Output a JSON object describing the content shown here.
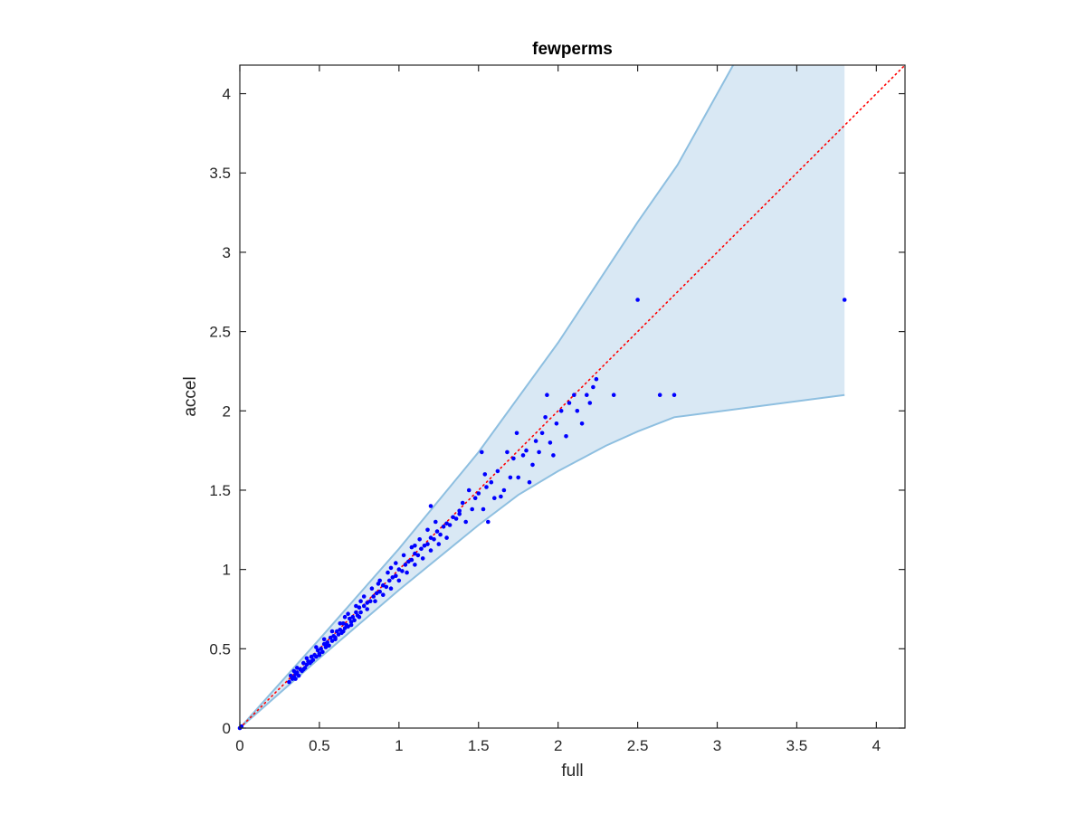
{
  "chart_data": {
    "type": "scatter",
    "title": "fewperms",
    "xlabel": "full",
    "ylabel": "accel",
    "xlim": [
      0,
      4.18
    ],
    "ylim": [
      0,
      4.18
    ],
    "xticks": [
      0,
      0.5,
      1,
      1.5,
      2,
      2.5,
      3,
      3.5,
      4
    ],
    "yticks": [
      0,
      0.5,
      1,
      1.5,
      2,
      2.5,
      3,
      3.5,
      4
    ],
    "xtick_labels": [
      "0",
      "0.5",
      "1",
      "1.5",
      "2",
      "2.5",
      "3",
      "3.5",
      "4"
    ],
    "ytick_labels": [
      "0",
      "0.5",
      "1",
      "1.5",
      "2",
      "2.5",
      "3",
      "3.5",
      "4"
    ],
    "grid": false,
    "box": true,
    "colors": {
      "points": "#0000ff",
      "band_fill": "#d9e8f4",
      "band_edge": "#8ebfe0",
      "diagonal": "#ff0000",
      "axes": "#262626"
    },
    "band": {
      "upper": [
        [
          0,
          0
        ],
        [
          0.5,
          0.56
        ],
        [
          1,
          1.13
        ],
        [
          1.5,
          1.74
        ],
        [
          2,
          2.43
        ],
        [
          2.5,
          3.19
        ],
        [
          2.75,
          3.55
        ],
        [
          3.1,
          4.18
        ],
        [
          3.8,
          4.18
        ]
      ],
      "lower": [
        [
          0,
          0
        ],
        [
          0.5,
          0.44
        ],
        [
          1,
          0.87
        ],
        [
          1.5,
          1.28
        ],
        [
          1.75,
          1.47
        ],
        [
          2,
          1.62
        ],
        [
          2.3,
          1.78
        ],
        [
          2.5,
          1.87
        ],
        [
          2.73,
          1.96
        ],
        [
          3.8,
          2.1
        ]
      ]
    },
    "diagonal": {
      "from": [
        0,
        0
      ],
      "to": [
        4.18,
        4.18
      ],
      "style": "dotted"
    },
    "series": [
      {
        "name": "",
        "points": [
          [
            0,
            0
          ],
          [
            0.01,
            0.01
          ],
          [
            0.31,
            0.29
          ],
          [
            0.32,
            0.33
          ],
          [
            0.33,
            0.31
          ],
          [
            0.34,
            0.36
          ],
          [
            0.34,
            0.32
          ],
          [
            0.35,
            0.34
          ],
          [
            0.36,
            0.35
          ],
          [
            0.37,
            0.33
          ],
          [
            0.38,
            0.37
          ],
          [
            0.39,
            0.36
          ],
          [
            0.4,
            0.41
          ],
          [
            0.41,
            0.38
          ],
          [
            0.42,
            0.4
          ],
          [
            0.43,
            0.42
          ],
          [
            0.44,
            0.41
          ],
          [
            0.45,
            0.45
          ],
          [
            0.46,
            0.43
          ],
          [
            0.47,
            0.46
          ],
          [
            0.48,
            0.45
          ],
          [
            0.49,
            0.49
          ],
          [
            0.5,
            0.47
          ],
          [
            0.51,
            0.5
          ],
          [
            0.52,
            0.48
          ],
          [
            0.53,
            0.53
          ],
          [
            0.54,
            0.51
          ],
          [
            0.55,
            0.54
          ],
          [
            0.56,
            0.52
          ],
          [
            0.57,
            0.57
          ],
          [
            0.58,
            0.55
          ],
          [
            0.59,
            0.58
          ],
          [
            0.6,
            0.56
          ],
          [
            0.61,
            0.61
          ],
          [
            0.62,
            0.59
          ],
          [
            0.63,
            0.62
          ],
          [
            0.64,
            0.6
          ],
          [
            0.65,
            0.66
          ],
          [
            0.66,
            0.63
          ],
          [
            0.67,
            0.65
          ],
          [
            0.68,
            0.64
          ],
          [
            0.69,
            0.69
          ],
          [
            0.7,
            0.67
          ],
          [
            0.71,
            0.7
          ],
          [
            0.72,
            0.68
          ],
          [
            0.73,
            0.73
          ],
          [
            0.74,
            0.71
          ],
          [
            0.75,
            0.76
          ],
          [
            0.76,
            0.73
          ],
          [
            0.78,
            0.77
          ],
          [
            0.8,
            0.79
          ],
          [
            0.82,
            0.8
          ],
          [
            0.84,
            0.83
          ],
          [
            0.86,
            0.85
          ],
          [
            0.88,
            0.86
          ],
          [
            0.9,
            0.9
          ],
          [
            0.92,
            0.89
          ],
          [
            0.94,
            0.93
          ],
          [
            0.96,
            0.95
          ],
          [
            0.98,
            0.96
          ],
          [
            1.0,
            1.0
          ],
          [
            1.02,
            0.99
          ],
          [
            1.04,
            1.03
          ],
          [
            1.06,
            1.05
          ],
          [
            1.08,
            1.06
          ],
          [
            1.1,
            1.1
          ],
          [
            1.12,
            1.09
          ],
          [
            1.14,
            1.13
          ],
          [
            1.16,
            1.15
          ],
          [
            1.18,
            1.16
          ],
          [
            1.2,
            1.2
          ],
          [
            1.22,
            1.19
          ],
          [
            1.24,
            1.24
          ],
          [
            1.26,
            1.22
          ],
          [
            1.28,
            1.27
          ],
          [
            1.3,
            1.29
          ],
          [
            1.32,
            1.28
          ],
          [
            1.34,
            1.33
          ],
          [
            1.36,
            1.32
          ],
          [
            1.38,
            1.37
          ],
          [
            0.35,
            0.31
          ],
          [
            0.4,
            0.37
          ],
          [
            0.45,
            0.42
          ],
          [
            0.5,
            0.46
          ],
          [
            0.55,
            0.52
          ],
          [
            0.6,
            0.57
          ],
          [
            0.65,
            0.61
          ],
          [
            0.7,
            0.65
          ],
          [
            0.75,
            0.7
          ],
          [
            0.8,
            0.75
          ],
          [
            0.85,
            0.8
          ],
          [
            0.9,
            0.84
          ],
          [
            0.95,
            0.88
          ],
          [
            1.0,
            0.93
          ],
          [
            1.05,
            0.98
          ],
          [
            1.1,
            1.03
          ],
          [
            1.15,
            1.07
          ],
          [
            1.2,
            1.12
          ],
          [
            1.25,
            1.16
          ],
          [
            1.3,
            1.2
          ],
          [
            0.36,
            0.38
          ],
          [
            0.42,
            0.44
          ],
          [
            0.48,
            0.51
          ],
          [
            0.53,
            0.56
          ],
          [
            0.58,
            0.61
          ],
          [
            0.63,
            0.66
          ],
          [
            0.68,
            0.72
          ],
          [
            0.73,
            0.77
          ],
          [
            0.78,
            0.83
          ],
          [
            0.83,
            0.88
          ],
          [
            0.88,
            0.93
          ],
          [
            0.93,
            0.98
          ],
          [
            0.98,
            1.04
          ],
          [
            1.03,
            1.09
          ],
          [
            1.08,
            1.14
          ],
          [
            1.13,
            1.19
          ],
          [
            1.18,
            1.25
          ],
          [
            1.23,
            1.3
          ],
          [
            1.2,
            1.4
          ],
          [
            1.1,
            1.15
          ],
          [
            0.95,
            1.01
          ],
          [
            0.87,
            0.91
          ],
          [
            0.76,
            0.8
          ],
          [
            0.66,
            0.7
          ],
          [
            1.38,
            1.35
          ],
          [
            1.4,
            1.42
          ],
          [
            1.42,
            1.3
          ],
          [
            1.44,
            1.5
          ],
          [
            1.46,
            1.38
          ],
          [
            1.48,
            1.45
          ],
          [
            1.5,
            1.48
          ],
          [
            1.52,
            1.74
          ],
          [
            1.53,
            1.38
          ],
          [
            1.54,
            1.6
          ],
          [
            1.55,
            1.52
          ],
          [
            1.56,
            1.3
          ],
          [
            1.58,
            1.55
          ],
          [
            1.6,
            1.45
          ],
          [
            1.62,
            1.62
          ],
          [
            1.64,
            1.46
          ],
          [
            1.66,
            1.5
          ],
          [
            1.68,
            1.74
          ],
          [
            1.7,
            1.58
          ],
          [
            1.72,
            1.7
          ],
          [
            1.74,
            1.86
          ],
          [
            1.75,
            1.58
          ],
          [
            1.78,
            1.72
          ],
          [
            1.8,
            1.75
          ],
          [
            1.82,
            1.55
          ],
          [
            1.84,
            1.66
          ],
          [
            1.86,
            1.81
          ],
          [
            1.88,
            1.74
          ],
          [
            1.9,
            1.86
          ],
          [
            1.92,
            1.96
          ],
          [
            1.93,
            2.1
          ],
          [
            1.95,
            1.8
          ],
          [
            1.97,
            1.72
          ],
          [
            1.99,
            1.92
          ],
          [
            2.02,
            2.0
          ],
          [
            2.05,
            1.84
          ],
          [
            2.07,
            2.05
          ],
          [
            2.1,
            2.1
          ],
          [
            2.12,
            2.0
          ],
          [
            2.15,
            1.92
          ],
          [
            2.18,
            2.1
          ],
          [
            2.2,
            2.05
          ],
          [
            2.22,
            2.15
          ],
          [
            2.24,
            2.2
          ],
          [
            2.35,
            2.1
          ],
          [
            2.5,
            2.7
          ],
          [
            2.64,
            2.1
          ],
          [
            2.73,
            2.1
          ],
          [
            3.8,
            2.7
          ]
        ]
      }
    ]
  }
}
